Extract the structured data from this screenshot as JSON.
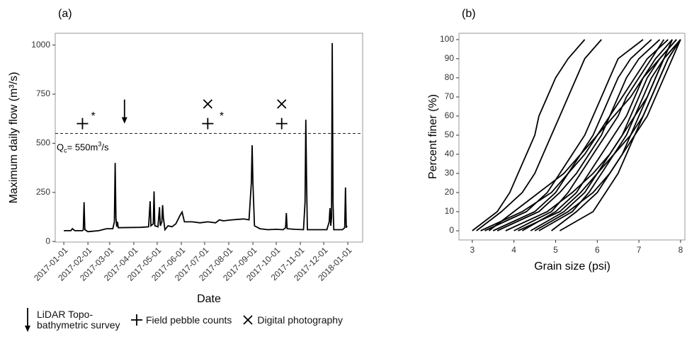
{
  "chart_data": [
    {
      "type": "line",
      "title": "(a)",
      "xlabel": "Date",
      "ylabel": "Maximum daily flow (m³/s)",
      "color": "#000000",
      "xlim": [
        "2016-12-21",
        "2018-01-20"
      ],
      "ylim": [
        -3,
        1060
      ],
      "xticks": [
        "2017-01-01",
        "2017-02-01",
        "2017-03-01",
        "2017-04-01",
        "2017-05-01",
        "2017-06-01",
        "2017-07-01",
        "2017-08-01",
        "2017-09-01",
        "2017-10-01",
        "2017-11-01",
        "2017-12-01",
        "2018-01-01"
      ],
      "yticks": [
        0,
        250,
        500,
        750,
        1000
      ],
      "x": [
        "2017-01-01",
        "2017-01-10",
        "2017-01-12",
        "2017-01-15",
        "2017-01-25",
        "2017-01-26",
        "2017-01-27",
        "2017-01-28",
        "2017-02-01",
        "2017-02-15",
        "2017-02-25",
        "2017-03-05",
        "2017-03-07",
        "2017-03-08",
        "2017-03-09",
        "2017-03-10",
        "2017-03-11",
        "2017-03-12",
        "2017-04-10",
        "2017-04-20",
        "2017-04-22",
        "2017-04-23",
        "2017-04-26",
        "2017-04-27",
        "2017-04-28",
        "2017-05-02",
        "2017-05-04",
        "2017-05-05",
        "2017-05-07",
        "2017-05-08",
        "2017-05-09",
        "2017-05-11",
        "2017-05-15",
        "2017-05-20",
        "2017-05-25",
        "2017-05-30",
        "2017-06-02",
        "2017-06-05",
        "2017-06-15",
        "2017-06-25",
        "2017-07-05",
        "2017-07-15",
        "2017-07-20",
        "2017-07-25",
        "2017-08-05",
        "2017-08-20",
        "2017-08-27",
        "2017-08-30",
        "2017-08-31",
        "2017-09-01",
        "2017-09-03",
        "2017-09-10",
        "2017-09-20",
        "2017-10-01",
        "2017-10-10",
        "2017-10-13",
        "2017-10-14",
        "2017-10-15",
        "2017-10-25",
        "2017-11-05",
        "2017-11-07",
        "2017-11-08",
        "2017-11-09",
        "2017-11-10",
        "2017-11-20",
        "2017-12-05",
        "2017-12-08",
        "2017-12-09",
        "2017-12-10",
        "2017-12-11",
        "2017-12-12",
        "2017-12-13",
        "2017-12-14",
        "2017-12-25",
        "2017-12-28",
        "2017-12-29",
        "2017-12-30",
        "2017-12-31"
      ],
      "values": [
        55,
        55,
        65,
        55,
        55,
        60,
        200,
        60,
        50,
        55,
        65,
        65,
        100,
        400,
        120,
        75,
        100,
        70,
        72,
        75,
        205,
        80,
        90,
        255,
        80,
        75,
        175,
        80,
        100,
        185,
        120,
        60,
        80,
        75,
        90,
        130,
        150,
        100,
        100,
        95,
        100,
        95,
        110,
        105,
        110,
        115,
        110,
        300,
        490,
        300,
        80,
        65,
        60,
        62,
        60,
        70,
        145,
        65,
        62,
        60,
        200,
        620,
        300,
        60,
        60,
        60,
        100,
        170,
        80,
        120,
        1010,
        200,
        60,
        60,
        70,
        275,
        70,
        80
      ],
      "threshold": {
        "value": 550,
        "label_parts": [
          "Q",
          "c",
          "= 550m",
          "3",
          "/s"
        ]
      },
      "markers": [
        {
          "name": "LiDAR Topo-bathymetric survey",
          "symbol": "arrow",
          "color": "#000000",
          "x": [
            "2017-03-20"
          ],
          "values": [
            600
          ]
        },
        {
          "name": "Field pebble counts",
          "symbol": "plus",
          "color": "#000000",
          "x": [
            "2017-01-25",
            "2017-07-05",
            "2017-10-08"
          ],
          "values": [
            600,
            600,
            600
          ]
        },
        {
          "name": "Digital photography",
          "symbol": "cross",
          "color": "#000000",
          "x": [
            "2017-07-05",
            "2017-10-08"
          ],
          "values": [
            700,
            700
          ]
        }
      ],
      "annotations": [
        {
          "text": "*",
          "x": "2017-02-05",
          "y": 635
        },
        {
          "text": "*",
          "x": "2017-07-20",
          "y": 635
        }
      ]
    },
    {
      "type": "line",
      "title": "(b)",
      "xlabel": "Grain size (psi)",
      "ylabel": "Percent finer (%)",
      "color": "#000000",
      "xlim": [
        2.68,
        8.12
      ],
      "ylim": [
        -4.8,
        103.3
      ],
      "xticks": [
        3,
        4,
        5,
        6,
        7,
        8
      ],
      "yticks": [
        0,
        10,
        20,
        30,
        40,
        50,
        60,
        70,
        80,
        90,
        100
      ],
      "series": [
        {
          "x": [
            3.0,
            3.6,
            3.9,
            4.1,
            4.3,
            4.5,
            4.6,
            4.8,
            5.0,
            5.3,
            5.7
          ],
          "values": [
            0,
            10,
            20,
            30,
            40,
            50,
            60,
            70,
            80,
            90,
            100
          ]
        },
        {
          "x": [
            3.1,
            3.7,
            4.2,
            4.5,
            4.7,
            4.9,
            5.1,
            5.3,
            5.5,
            5.7,
            6.1
          ],
          "values": [
            0,
            10,
            20,
            30,
            40,
            50,
            60,
            70,
            80,
            90,
            100
          ]
        },
        {
          "x": [
            3.3,
            4.3,
            4.8,
            5.1,
            5.4,
            5.7,
            5.9,
            6.1,
            6.3,
            6.5,
            7.1
          ],
          "values": [
            0,
            10,
            20,
            30,
            40,
            50,
            60,
            70,
            80,
            90,
            100
          ]
        },
        {
          "x": [
            3.5,
            4.5,
            5.0,
            5.3,
            5.6,
            5.9,
            6.1,
            6.3,
            6.5,
            6.8,
            7.3
          ],
          "values": [
            0,
            10,
            20,
            30,
            40,
            50,
            60,
            70,
            80,
            90,
            100
          ]
        },
        {
          "x": [
            3.6,
            4.6,
            5.1,
            5.5,
            5.8,
            6.1,
            6.3,
            6.5,
            6.7,
            7.0,
            7.5
          ],
          "values": [
            0,
            10,
            20,
            30,
            40,
            50,
            60,
            70,
            80,
            90,
            100
          ]
        },
        {
          "x": [
            4.0,
            4.9,
            5.3,
            5.6,
            5.9,
            6.2,
            6.5,
            6.7,
            7.0,
            7.3,
            7.6
          ],
          "values": [
            0,
            10,
            20,
            30,
            40,
            50,
            60,
            70,
            80,
            90,
            100
          ]
        },
        {
          "x": [
            4.2,
            5.0,
            5.5,
            5.8,
            6.1,
            6.4,
            6.7,
            6.9,
            7.1,
            7.4,
            7.8
          ],
          "values": [
            0,
            10,
            20,
            30,
            40,
            50,
            60,
            70,
            80,
            90,
            100
          ]
        },
        {
          "x": [
            4.4,
            5.2,
            5.7,
            6.0,
            6.3,
            6.6,
            6.8,
            7.0,
            7.2,
            7.5,
            7.9
          ],
          "values": [
            0,
            10,
            20,
            30,
            40,
            50,
            60,
            70,
            80,
            90,
            100
          ]
        },
        {
          "x": [
            4.6,
            5.4,
            5.8,
            6.1,
            6.4,
            6.7,
            6.9,
            7.1,
            7.3,
            7.6,
            8.0
          ],
          "values": [
            0,
            10,
            20,
            30,
            40,
            50,
            60,
            70,
            80,
            90,
            100
          ]
        },
        {
          "x": [
            4.9,
            5.5,
            6.0,
            6.3,
            6.6,
            6.8,
            7.0,
            7.2,
            7.4,
            7.6,
            8.0
          ],
          "values": [
            0,
            10,
            20,
            30,
            40,
            50,
            60,
            70,
            80,
            90,
            100
          ]
        },
        {
          "x": [
            5.1,
            5.9,
            6.2,
            6.5,
            6.7,
            6.9,
            7.1,
            7.3,
            7.5,
            7.7,
            8.0
          ],
          "values": [
            0,
            10,
            20,
            30,
            40,
            50,
            60,
            70,
            80,
            90,
            100
          ]
        },
        {
          "x": [
            3.4,
            4.0,
            4.6,
            5.2,
            5.6,
            6.0,
            6.4,
            6.8,
            7.1,
            7.5,
            7.9
          ],
          "values": [
            0,
            10,
            20,
            30,
            40,
            50,
            60,
            70,
            80,
            90,
            100
          ]
        },
        {
          "x": [
            3.8,
            4.8,
            5.4,
            5.9,
            6.3,
            6.6,
            6.9,
            7.2,
            7.4,
            7.6,
            7.8
          ],
          "values": [
            0,
            10,
            20,
            30,
            40,
            50,
            60,
            70,
            80,
            90,
            100
          ]
        },
        {
          "x": [
            4.1,
            5.1,
            5.6,
            6.0,
            6.4,
            6.8,
            7.1,
            7.3,
            7.5,
            7.7,
            8.0
          ],
          "values": [
            0,
            10,
            20,
            30,
            40,
            50,
            60,
            70,
            80,
            90,
            100
          ]
        },
        {
          "x": [
            3.2,
            4.2,
            4.9,
            5.3,
            5.7,
            6.0,
            6.3,
            6.6,
            6.9,
            7.2,
            7.7
          ],
          "values": [
            0,
            10,
            20,
            30,
            40,
            50,
            60,
            70,
            80,
            90,
            100
          ]
        },
        {
          "x": [
            4.5,
            5.3,
            5.9,
            6.3,
            6.6,
            6.9,
            7.2,
            7.4,
            7.6,
            7.8,
            8.0
          ],
          "values": [
            0,
            10,
            20,
            30,
            40,
            50,
            60,
            70,
            80,
            90,
            100
          ]
        }
      ]
    }
  ]
}
